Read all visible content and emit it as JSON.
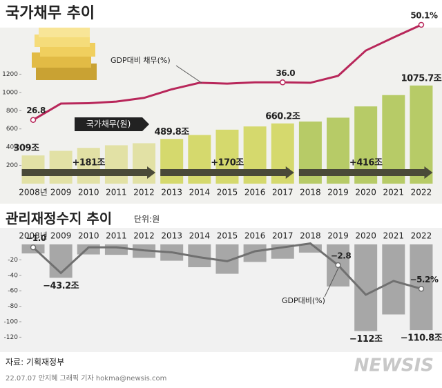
{
  "chart_data": [
    {
      "type": "bar",
      "title": "국가채무 추이",
      "categories": [
        "2008년",
        "2009",
        "2010",
        "2011",
        "2012",
        "2013",
        "2014",
        "2015",
        "2016",
        "2017",
        "2018",
        "2019",
        "2020",
        "2021",
        "2022"
      ],
      "series": [
        {
          "name": "국가채무(원)",
          "values": [
            309,
            359.6,
            392.2,
            420.5,
            443.1,
            489.8,
            533.2,
            591.5,
            626.9,
            660.2,
            680.5,
            723.2,
            846.6,
            970.7,
            1075.7
          ],
          "value_labels": [
            "309조",
            null,
            null,
            null,
            null,
            "489.8조",
            null,
            null,
            null,
            "660.2조",
            null,
            null,
            null,
            null,
            "1075.7조"
          ]
        },
        {
          "name": "GDP대비 채무(%)",
          "color": "#b8275a",
          "axis": "y2",
          "values": [
            26.8,
            30.8,
            30.9,
            31.3,
            32.2,
            34.3,
            35.9,
            35.7,
            36.0,
            36.0,
            35.9,
            37.6,
            43.8,
            47.0,
            50.1
          ],
          "value_labels": [
            "26.8",
            null,
            null,
            null,
            null,
            null,
            null,
            null,
            null,
            "36.0",
            null,
            null,
            null,
            null,
            "50.1%"
          ]
        }
      ],
      "periods": [
        {
          "label": "+181조",
          "from": "2008년",
          "to": "2012",
          "color": "#e2e1a5"
        },
        {
          "label": "+170조",
          "from": "2013",
          "to": "2017",
          "color": "#d5d96d"
        },
        {
          "label": "+416조",
          "from": "2018",
          "to": "2022",
          "color": "#b7cb67"
        }
      ],
      "ylim": [
        0,
        1400
      ],
      "yticks": [
        200,
        400,
        600,
        800,
        1000,
        1200
      ],
      "y2lim": [
        10,
        55
      ]
    },
    {
      "type": "bar",
      "title": "관리재정수지 추이",
      "subtitle": "단위:원",
      "categories": [
        "2008년",
        "2009",
        "2010",
        "2011",
        "2012",
        "2013",
        "2014",
        "2015",
        "2016",
        "2017",
        "2018",
        "2019",
        "2020",
        "2021",
        "2022"
      ],
      "series": [
        {
          "color": "#a7a7a7",
          "values": [
            -11.7,
            -43.2,
            -13.0,
            -13.5,
            -17.4,
            -21.1,
            -29.5,
            -38.0,
            -22.7,
            -18.5,
            -10.6,
            -54.4,
            -112,
            -90.6,
            -110.8
          ],
          "value_labels": [
            null,
            "−43.2조",
            null,
            null,
            null,
            null,
            null,
            null,
            null,
            null,
            null,
            null,
            "−112조",
            null,
            "−110.8조"
          ]
        },
        {
          "name": "GDP대비(%)",
          "color": "#707070",
          "axis": "y2",
          "values": [
            -1.0,
            -3.6,
            -1.0,
            -1.0,
            -1.3,
            -1.5,
            -2.0,
            -2.4,
            -1.4,
            -1.0,
            -0.6,
            -2.8,
            -5.8,
            -4.4,
            -5.2
          ],
          "value_labels": [
            "−1.0",
            null,
            null,
            null,
            null,
            null,
            null,
            null,
            null,
            null,
            null,
            "−2.8",
            null,
            null,
            "−5.2%"
          ]
        }
      ],
      "ylim": [
        -125,
        0
      ],
      "yticks": [
        -20,
        -40,
        -60,
        -80,
        -100,
        -120
      ],
      "y2lim": [
        -10,
        0
      ]
    }
  ],
  "source": "자료: 기획재정부",
  "credit": "22.07.07 안지혜 그래픽 기자 hokma@newsis.com",
  "logo": "NEWSIS"
}
